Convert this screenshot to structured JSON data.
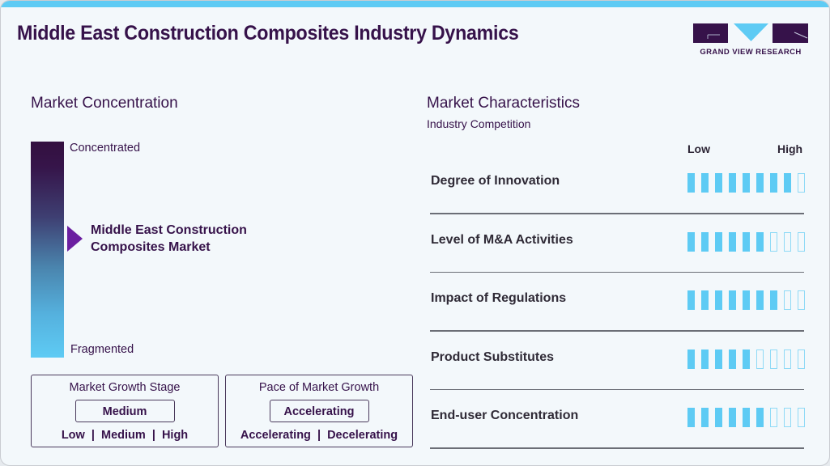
{
  "header": {
    "title": "Middle East Construction Composites Industry Dynamics",
    "logo_text": "GRAND VIEW RESEARCH",
    "accent_color": "#5ecbf4",
    "brand_color": "#36124a"
  },
  "concentration": {
    "heading": "Market Concentration",
    "top_label": "Concentrated",
    "bottom_label": "Fragmented",
    "marker_label_line1": "Middle East Construction",
    "marker_label_line2": "Composites Market",
    "marker_color": "#6b1fa0"
  },
  "growth_stage": {
    "title": "Market Growth Stage",
    "value": "Medium",
    "options": "Low  |  Medium  |  High"
  },
  "growth_pace": {
    "title": "Pace of Market Growth",
    "value": "Accelerating",
    "options": "Accelerating  |  Decelerating"
  },
  "characteristics": {
    "heading": "Market Characteristics",
    "subheading": "Industry Competition",
    "scale_low": "Low",
    "scale_high": "High",
    "max_rating": 9,
    "rows": [
      {
        "label": "Degree of Innovation",
        "rating": 8
      },
      {
        "label": "Level of M&A Activities",
        "rating": 6
      },
      {
        "label": "Impact of Regulations",
        "rating": 7
      },
      {
        "label": "Product Substitutes",
        "rating": 5
      },
      {
        "label": "End-user Concentration",
        "rating": 6
      }
    ]
  }
}
